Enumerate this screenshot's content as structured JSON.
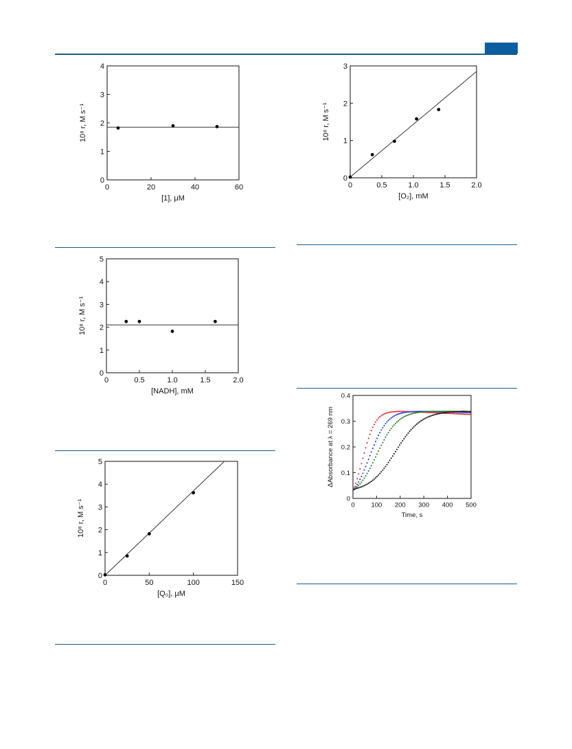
{
  "page": {
    "accent_color": "#0b5fa0"
  },
  "chart_data": [
    {
      "id": "c1",
      "type": "scatter",
      "xlabel": "[1], μM",
      "ylabel": "10⁸ r, M s⁻¹",
      "xlim": [
        0,
        60
      ],
      "ylim": [
        0,
        4
      ],
      "xticks": [
        0,
        20,
        40,
        60
      ],
      "xtick_labels": [
        "0",
        "20",
        "40",
        "60"
      ],
      "yticks": [
        0,
        1,
        2,
        3,
        4
      ],
      "ytick_labels": [
        "0",
        "1",
        "2",
        "3",
        "4"
      ],
      "points": [
        [
          5,
          1.82
        ],
        [
          30,
          1.9
        ],
        [
          50,
          1.87
        ]
      ],
      "fit_line": [
        [
          0,
          1.85
        ],
        [
          60,
          1.85
        ]
      ]
    },
    {
      "id": "c2",
      "type": "scatter",
      "xlabel": "[O₂], mM",
      "ylabel": "10⁸ r, M s⁻¹",
      "xlim": [
        0,
        2.0
      ],
      "ylim": [
        0,
        3
      ],
      "xticks": [
        0,
        0.5,
        1.0,
        1.5,
        2.0
      ],
      "xtick_labels": [
        "0",
        "0.5",
        "1.0",
        "1.5",
        "2.0"
      ],
      "yticks": [
        0,
        1,
        2,
        3
      ],
      "ytick_labels": [
        "0",
        "1",
        "2",
        "3"
      ],
      "points": [
        [
          0,
          0.02
        ],
        [
          0.35,
          0.62
        ],
        [
          0.7,
          0.98
        ],
        [
          1.05,
          1.58
        ],
        [
          1.4,
          1.83
        ]
      ],
      "fit_line": [
        [
          0,
          0.02
        ],
        [
          2.0,
          2.85
        ]
      ]
    },
    {
      "id": "c3",
      "type": "scatter",
      "xlabel": "[NADH], mM",
      "ylabel": "10⁸ r, M s⁻¹",
      "xlim": [
        0,
        2.0
      ],
      "ylim": [
        0,
        5
      ],
      "xticks": [
        0,
        0.5,
        1.0,
        1.5,
        2.0
      ],
      "xtick_labels": [
        "0",
        "0.5",
        "1.0",
        "1.5",
        "2.0"
      ],
      "yticks": [
        0,
        1,
        2,
        3,
        4,
        5
      ],
      "ytick_labels": [
        "0",
        "1",
        "2",
        "3",
        "4",
        "5"
      ],
      "points": [
        [
          0.3,
          2.25
        ],
        [
          0.5,
          2.25
        ],
        [
          1.0,
          1.82
        ],
        [
          1.65,
          2.25
        ]
      ],
      "fit_line": [
        [
          0,
          2.1
        ],
        [
          2.0,
          2.1
        ]
      ]
    },
    {
      "id": "c4",
      "type": "line",
      "xlabel": "Time, s",
      "ylabel": "ΔAbsorbance at λ = 269 nm",
      "xlim": [
        0,
        500
      ],
      "ylim": [
        0,
        0.4
      ],
      "xticks": [
        0,
        100,
        200,
        300,
        400,
        500
      ],
      "xtick_labels": [
        "0",
        "100",
        "200",
        "300",
        "400",
        "500"
      ],
      "yticks": [
        0,
        0.1,
        0.2,
        0.3,
        0.4
      ],
      "ytick_labels": [
        "0",
        "0.1",
        "0.2",
        "0.3",
        "0.4"
      ],
      "series": [
        {
          "color": "#e8202a",
          "rise_midpoint_s": 40,
          "rise_width_s": 28,
          "start": 0.03,
          "plateau": 0.343,
          "end": 0.326
        },
        {
          "color": "#1a33e0",
          "rise_midpoint_s": 70,
          "rise_width_s": 38,
          "start": 0.03,
          "plateau": 0.342,
          "end": 0.333
        },
        {
          "color": "#1f7a1f",
          "rise_midpoint_s": 100,
          "rise_width_s": 45,
          "start": 0.03,
          "plateau": 0.341,
          "end": 0.337
        },
        {
          "color": "#111111",
          "rise_midpoint_s": 180,
          "rise_width_s": 55,
          "start": 0.035,
          "plateau": 0.34,
          "end": 0.338
        }
      ]
    },
    {
      "id": "c5",
      "type": "scatter",
      "xlabel": "[Q₀], μM",
      "ylabel": "10⁸ r, M s⁻¹",
      "xlim": [
        0,
        150
      ],
      "ylim": [
        0,
        5
      ],
      "xticks": [
        0,
        50,
        100,
        150
      ],
      "xtick_labels": [
        "0",
        "50",
        "100",
        "150"
      ],
      "yticks": [
        0,
        1,
        2,
        3,
        4,
        5
      ],
      "ytick_labels": [
        "0",
        "1",
        "2",
        "3",
        "4",
        "5"
      ],
      "points": [
        [
          0,
          0.02
        ],
        [
          25,
          0.85
        ],
        [
          50,
          1.82
        ],
        [
          100,
          3.62
        ]
      ],
      "fit_line": [
        [
          0,
          0
        ],
        [
          135,
          5
        ]
      ]
    }
  ]
}
